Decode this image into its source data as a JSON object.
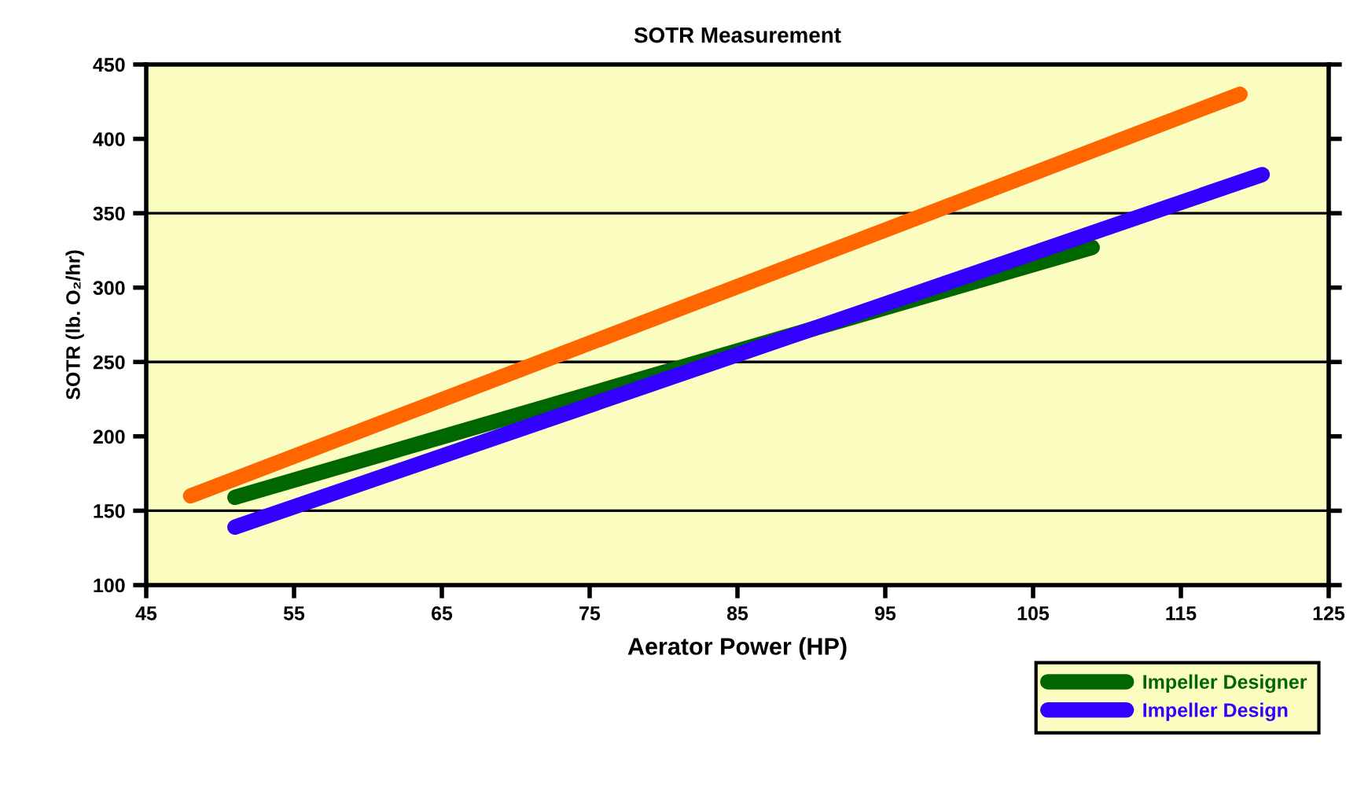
{
  "chart_data": {
    "type": "line",
    "title": "SOTR Measurement",
    "xlabel": "Aerator Power (HP)",
    "ylabel": "SOTR (lb. O₂/hr)",
    "xlim": [
      45,
      125
    ],
    "xticks": [
      45,
      55,
      65,
      75,
      85,
      95,
      105,
      115,
      125
    ],
    "ylim": [
      100,
      450
    ],
    "yticks": [
      100,
      150,
      200,
      250,
      300,
      350,
      400,
      450
    ],
    "grid": false,
    "legend": "bottom right",
    "marker": "none",
    "line_style": "solid",
    "ref_lines": [
      {
        "axis": "y",
        "value": 150,
        "color": "#000000"
      },
      {
        "axis": "y",
        "value": 250,
        "color": "#000000"
      },
      {
        "axis": "y",
        "value": 350,
        "color": "#000000"
      }
    ],
    "series": [
      {
        "color": "#ff6600",
        "x": [
          48,
          119
        ],
        "values": [
          160,
          430
        ]
      },
      {
        "name": "Impeller Designer",
        "color": "#006600",
        "x": [
          51,
          109
        ],
        "values": [
          159,
          327
        ]
      },
      {
        "name": "Impeller Design",
        "color": "#3300ff",
        "x": [
          51,
          120.5
        ],
        "values": [
          139,
          376
        ]
      }
    ]
  }
}
